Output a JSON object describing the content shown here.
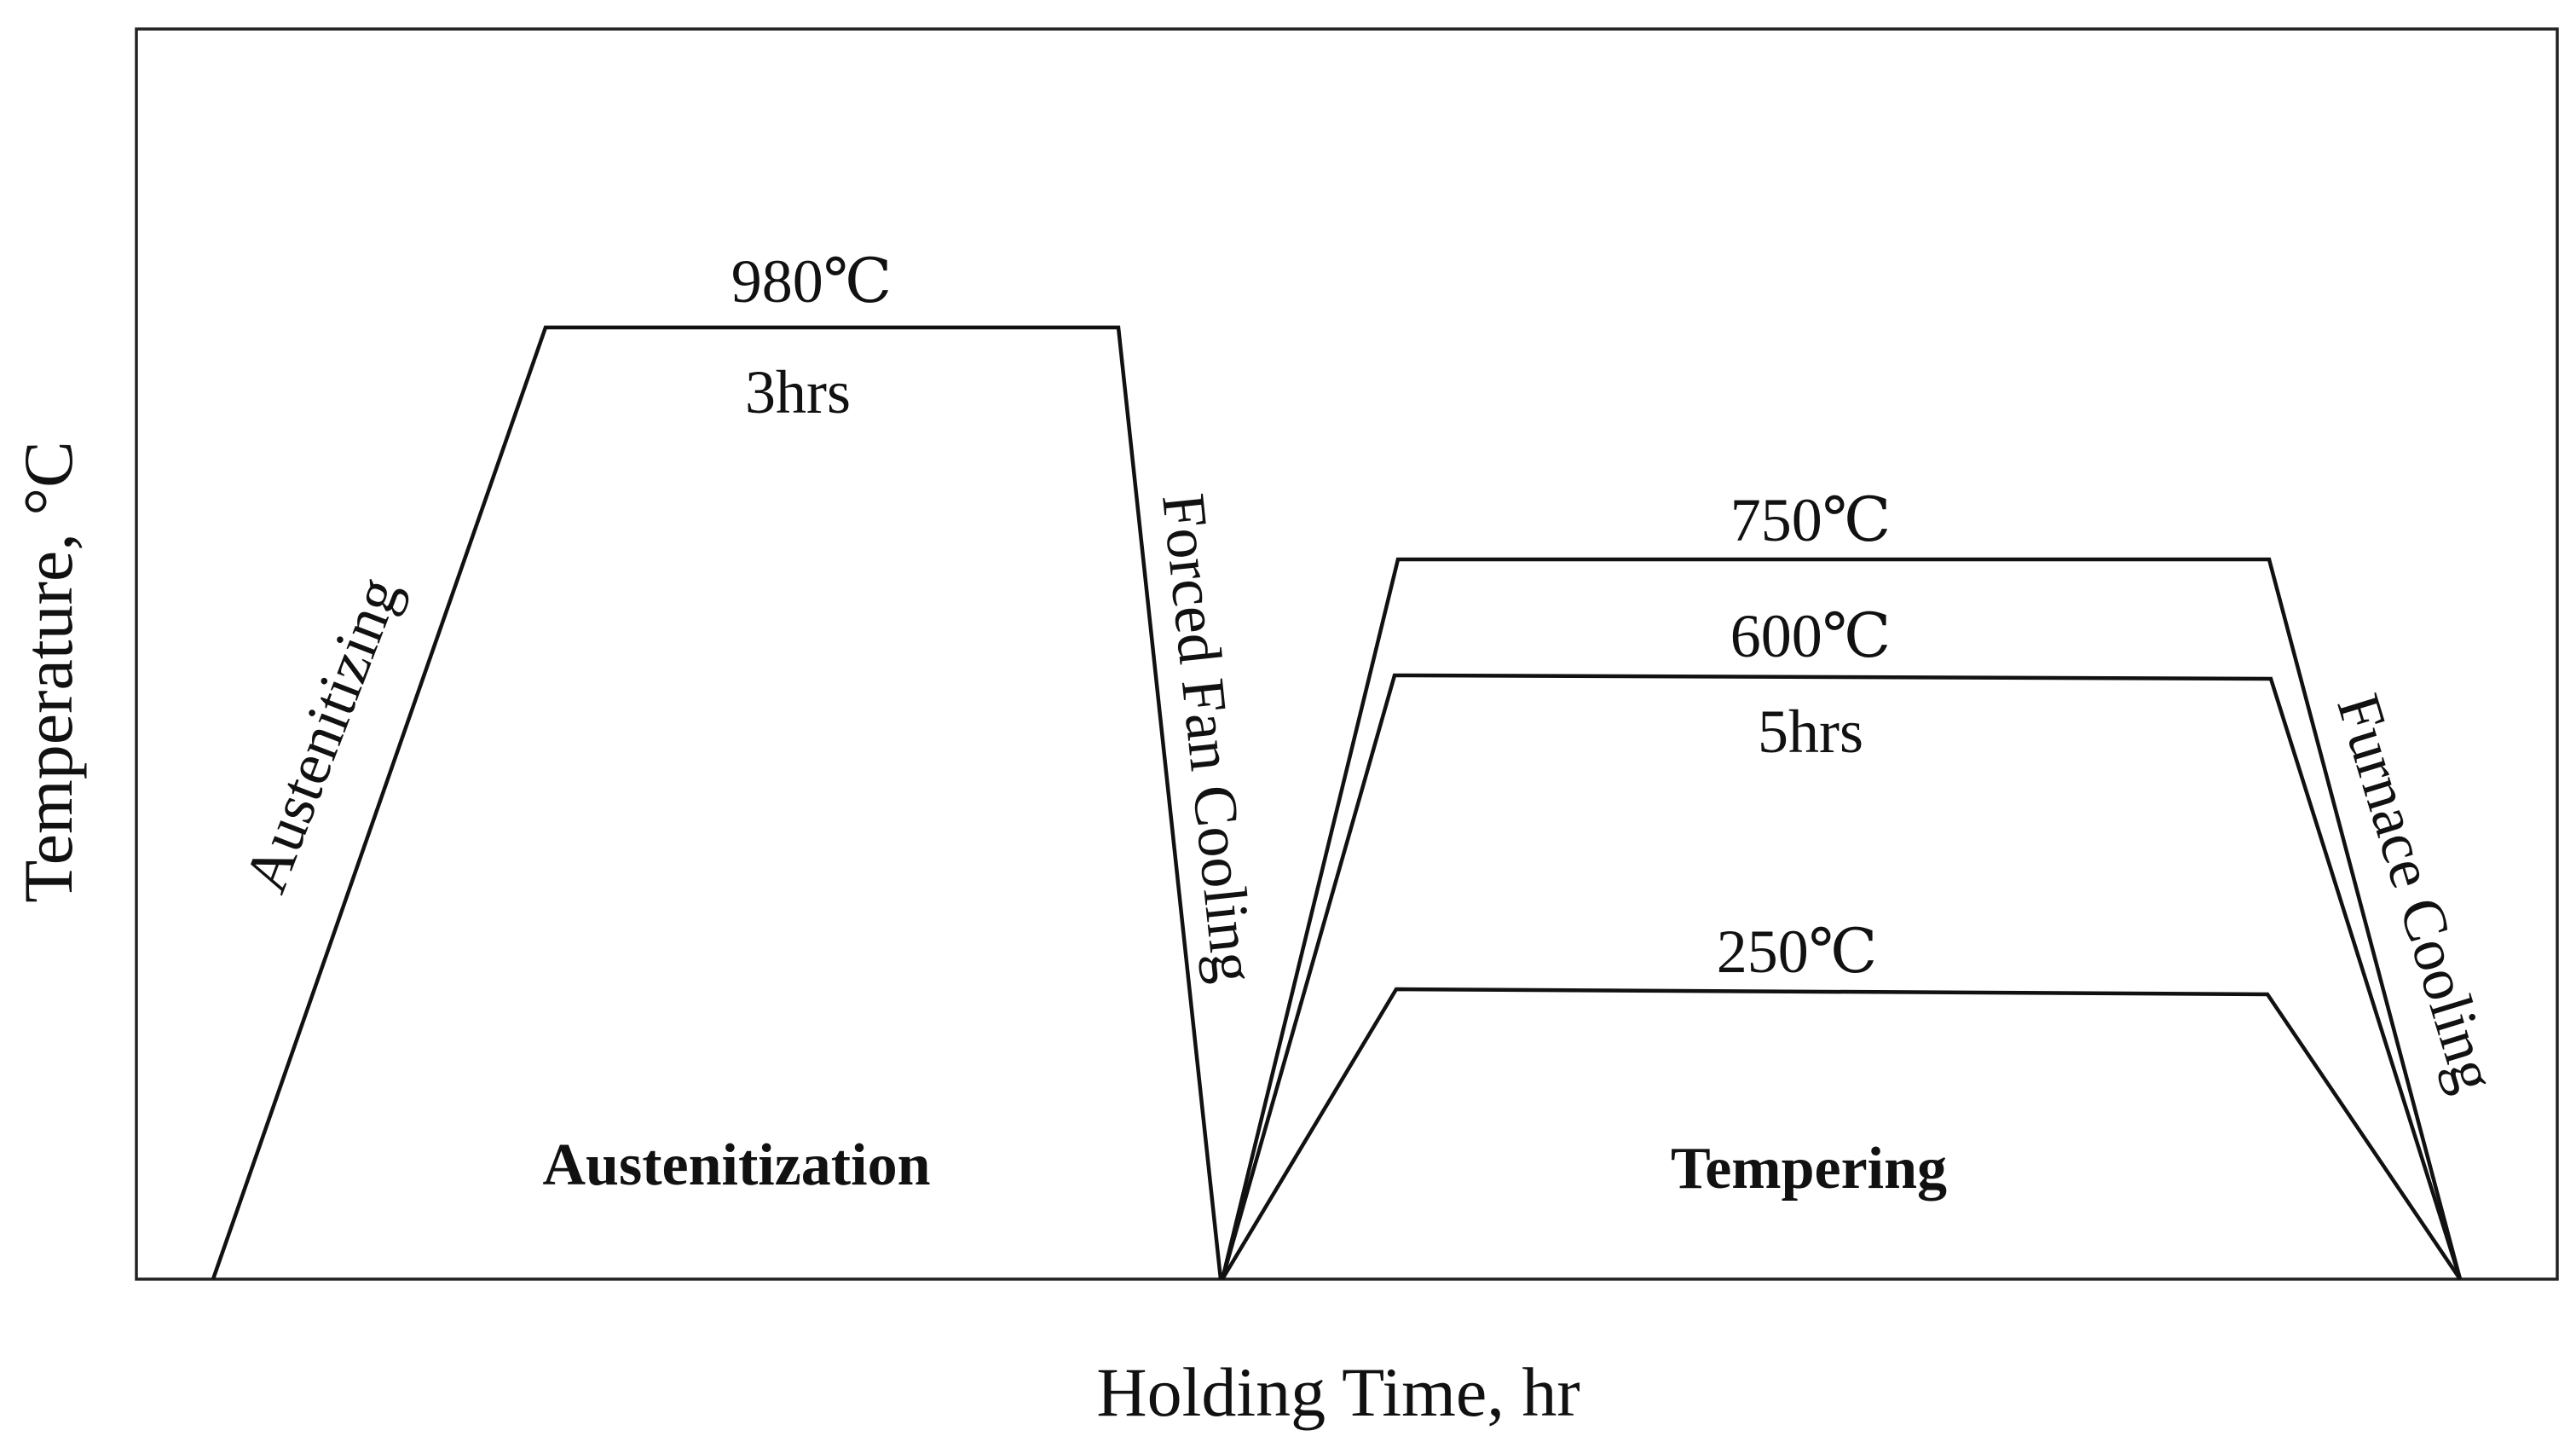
{
  "axes": {
    "xlabel": "Holding Time, hr",
    "ylabel": "Temperature, °C"
  },
  "stages": {
    "austenitization": {
      "name": "Austenitization",
      "heating_label": "Austenitizing",
      "temperature_label": "980℃",
      "hold_label": "3hrs",
      "cooling_label": "Forced Fan Cooling",
      "temperature_c": 980,
      "hold_hours": 3
    },
    "tempering": {
      "name": "Tempering",
      "hold_label": "5hrs",
      "cooling_label": "Furnace Cooling",
      "hold_hours": 5,
      "temperatures": [
        {
          "label": "750℃",
          "value_c": 750
        },
        {
          "label": "600℃",
          "value_c": 600
        },
        {
          "label": "250℃",
          "value_c": 250
        }
      ]
    }
  }
}
